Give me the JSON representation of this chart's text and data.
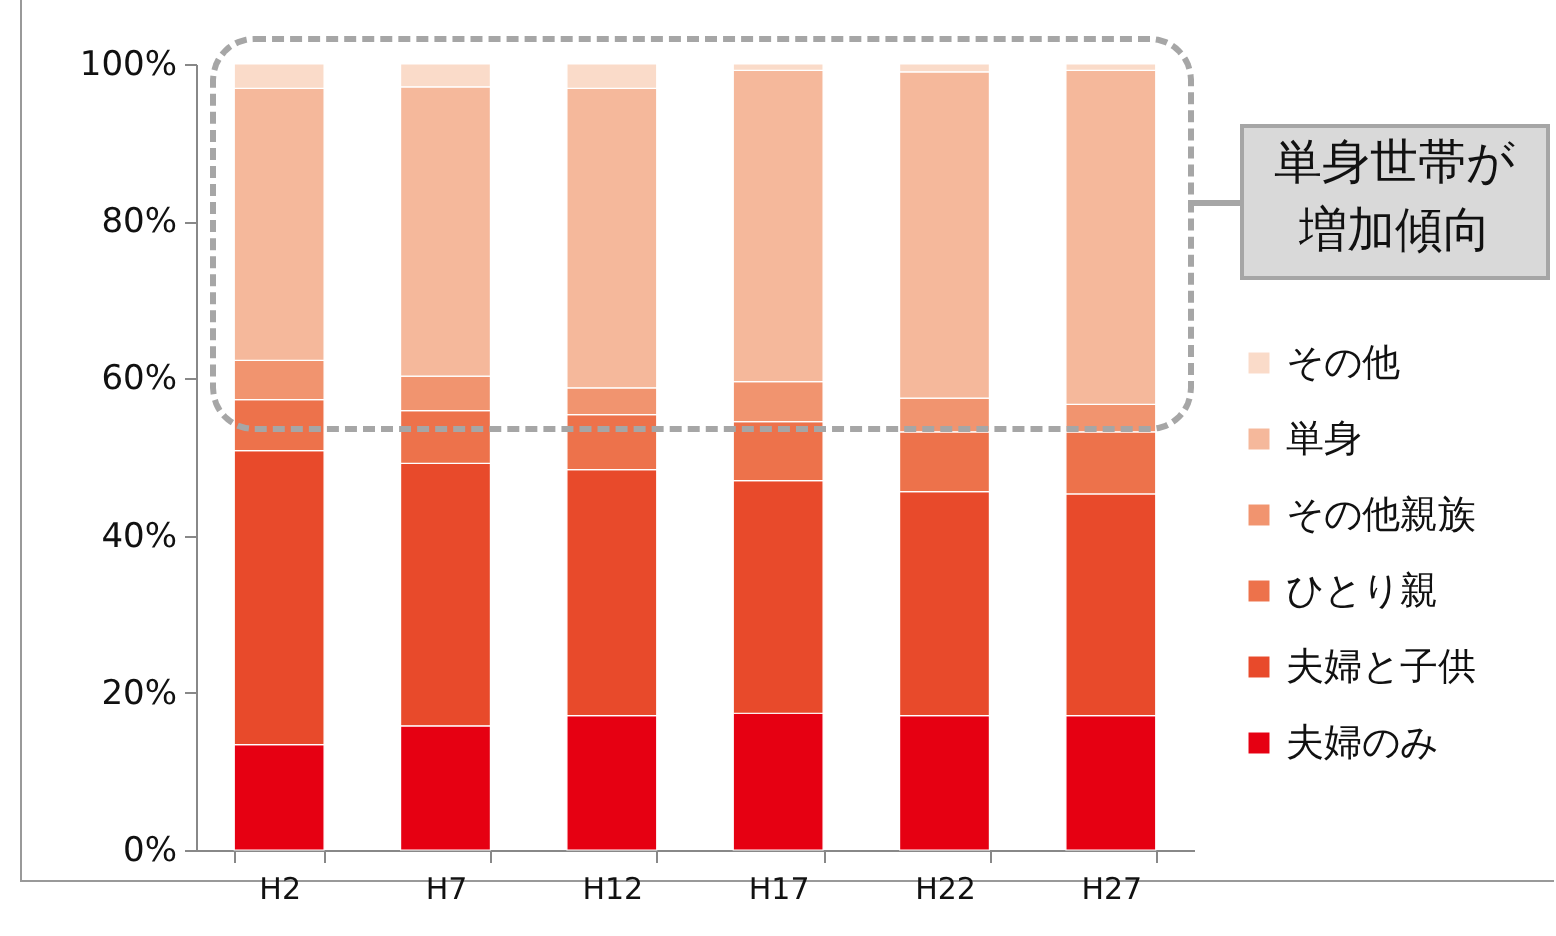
{
  "chart_data": {
    "type": "bar",
    "stacked": true,
    "categories": [
      "H2",
      "H7",
      "H12",
      "H17",
      "H22",
      "H27"
    ],
    "series": [
      {
        "name": "夫婦のみ",
        "color": "#e60012",
        "values": [
          13.4,
          15.8,
          17.1,
          17.4,
          17.1,
          17.1
        ]
      },
      {
        "name": "夫婦と子供",
        "color": "#e84a2b",
        "values": [
          37.4,
          33.4,
          31.3,
          29.6,
          28.5,
          28.2
        ]
      },
      {
        "name": "ひとり親",
        "color": "#ed724b",
        "values": [
          6.5,
          6.7,
          7.0,
          7.5,
          7.6,
          7.9
        ]
      },
      {
        "name": "その他親族",
        "color": "#f1946f",
        "values": [
          5.0,
          4.4,
          3.4,
          5.1,
          4.3,
          3.5
        ]
      },
      {
        "name": "単身",
        "color": "#f5b89b",
        "values": [
          34.6,
          36.8,
          38.1,
          39.6,
          41.5,
          42.5
        ]
      },
      {
        "name": "その他",
        "color": "#fadbc9",
        "values": [
          3.1,
          2.9,
          3.1,
          0.8,
          1.0,
          0.8
        ]
      }
    ],
    "ylim": [
      0,
      100
    ],
    "yticks": [
      {
        "value": 0,
        "label": "0%"
      },
      {
        "value": 20,
        "label": "20%"
      },
      {
        "value": 40,
        "label": "40%"
      },
      {
        "value": 60,
        "label": "60%"
      },
      {
        "value": 80,
        "label": "80%"
      },
      {
        "value": 100,
        "label": "100%"
      }
    ],
    "grid": false,
    "legend": "right",
    "annotations": [
      "単身世帯が増加傾向"
    ]
  }
}
